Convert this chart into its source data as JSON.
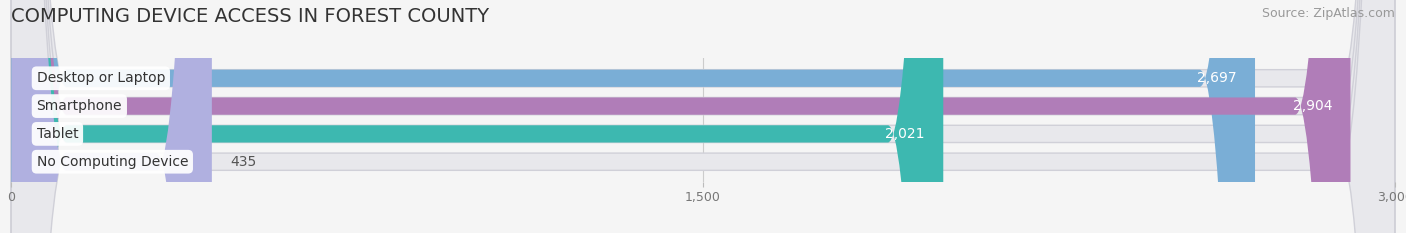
{
  "title": "COMPUTING DEVICE ACCESS IN FOREST COUNTY",
  "source": "Source: ZipAtlas.com",
  "categories": [
    "Desktop or Laptop",
    "Smartphone",
    "Tablet",
    "No Computing Device"
  ],
  "values": [
    2697,
    2904,
    2021,
    435
  ],
  "bar_colors": [
    "#7aaed6",
    "#b07db8",
    "#3db8b0",
    "#b0b0e0"
  ],
  "value_label_colors": [
    "white",
    "white",
    "white",
    "#555555"
  ],
  "xlim": [
    0,
    3000
  ],
  "xticks": [
    0,
    1500,
    3000
  ],
  "background_color": "#f5f5f5",
  "bar_bg_color": "#e8e8ec",
  "bar_bg_border": "#d0d0d8",
  "title_fontsize": 14,
  "source_fontsize": 9,
  "bar_label_fontsize": 10,
  "category_fontsize": 10,
  "bar_height": 0.62,
  "figsize": [
    14.06,
    2.33
  ],
  "dpi": 100
}
